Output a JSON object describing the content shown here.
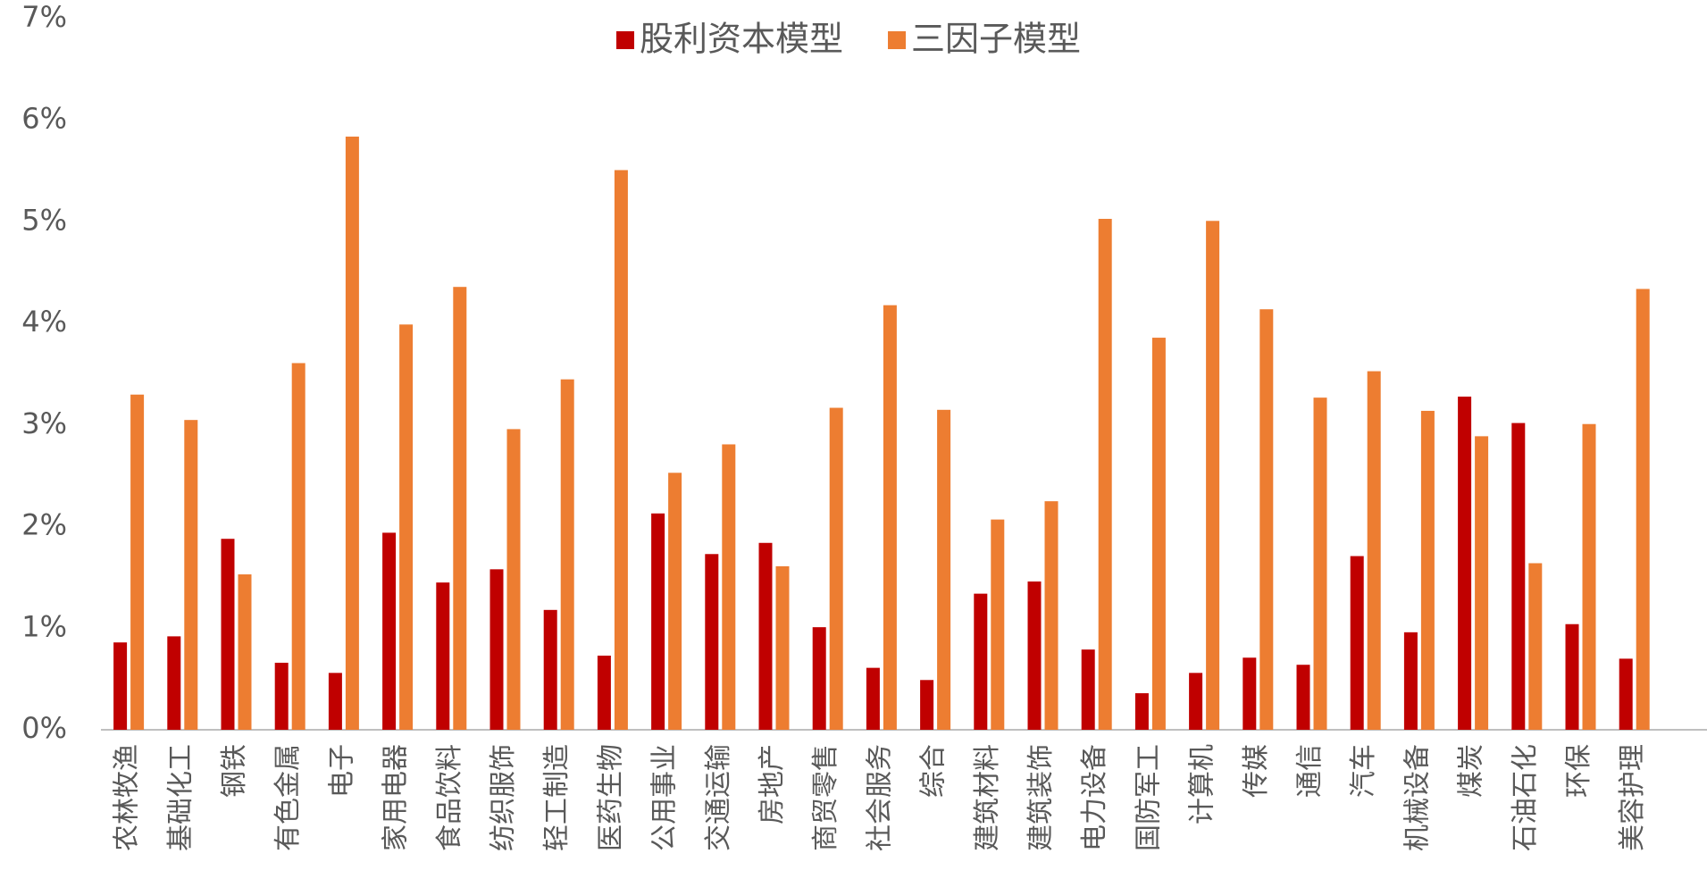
{
  "chart_data": {
    "type": "bar",
    "categories": [
      "农林牧渔",
      "基础化工",
      "钢铁",
      "有色金属",
      "电子",
      "家用电器",
      "食品饮料",
      "纺织服饰",
      "轻工制造",
      "医药生物",
      "公用事业",
      "交通运输",
      "房地产",
      "商贸零售",
      "社会服务",
      "综合",
      "建筑材料",
      "建筑装饰",
      "电力设备",
      "国防军工",
      "计算机",
      "传媒",
      "通信",
      "汽车",
      "机械设备",
      "煤炭",
      "石油石化",
      "环保",
      "美容护理"
    ],
    "series": [
      {
        "name": "股利资本模型",
        "color": "#c00000",
        "values": [
          0.86,
          0.92,
          1.88,
          0.66,
          0.56,
          1.94,
          1.45,
          1.58,
          1.18,
          0.73,
          2.13,
          1.73,
          1.84,
          1.01,
          0.61,
          0.49,
          1.34,
          1.46,
          0.79,
          0.36,
          0.56,
          0.71,
          0.64,
          1.71,
          0.96,
          3.28,
          3.02,
          1.04,
          0.7
        ]
      },
      {
        "name": "三因子模型",
        "color": "#ed7d31",
        "values": [
          3.3,
          3.05,
          1.53,
          3.61,
          5.84,
          3.99,
          4.36,
          2.96,
          3.45,
          5.51,
          2.53,
          2.81,
          1.61,
          3.17,
          4.18,
          3.15,
          2.07,
          2.25,
          5.03,
          3.86,
          5.01,
          4.14,
          3.27,
          3.53,
          3.14,
          2.89,
          1.64,
          3.01,
          4.34
        ]
      }
    ],
    "ylim": [
      0,
      7
    ],
    "yticks": [
      {
        "value": 0,
        "label": "0%"
      },
      {
        "value": 1,
        "label": "1%"
      },
      {
        "value": 2,
        "label": "2%"
      },
      {
        "value": 3,
        "label": "3%"
      },
      {
        "value": 4,
        "label": "4%"
      },
      {
        "value": 5,
        "label": "5%"
      },
      {
        "value": 6,
        "label": "6%"
      },
      {
        "value": 7,
        "label": "7%"
      }
    ],
    "grid": false
  }
}
